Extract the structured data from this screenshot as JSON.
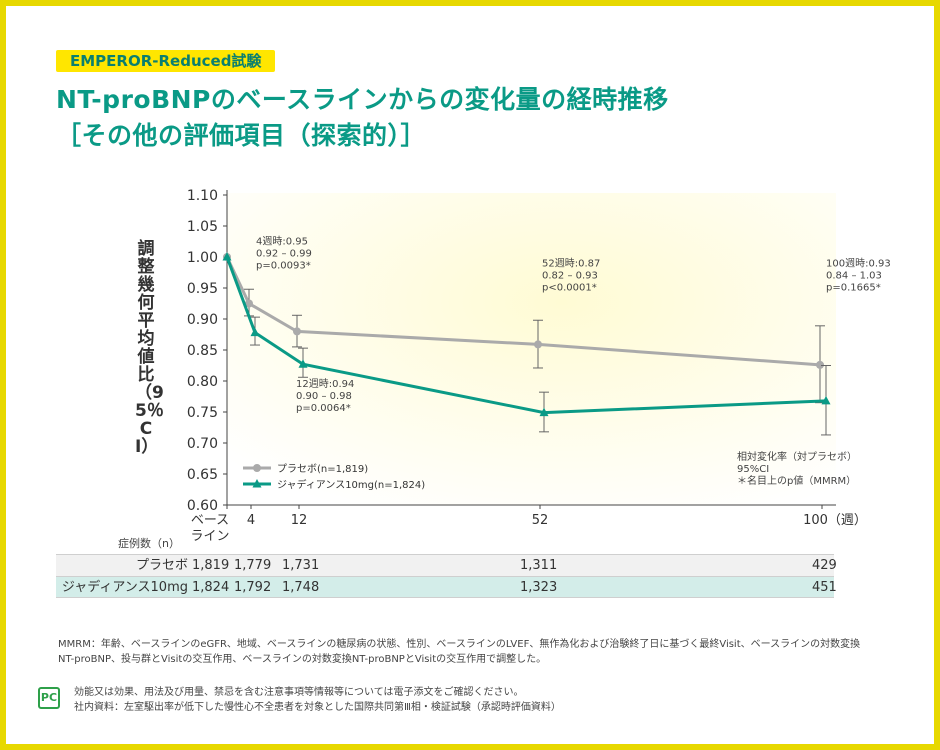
{
  "badge": "EMPEROR-Reduced試験",
  "title_line1": "NT-proBNPのベースラインからの変化量の経時推移",
  "title_line2": "［その他の評価項目（探索的）］",
  "colors": {
    "placebo": "#aaaaaa",
    "drug": "#0a9a86",
    "title": "#0a9a86",
    "badge_bg": "#ffe600",
    "frame": "#e7d800",
    "row2_bg": "#d3ede9"
  },
  "chart_data": {
    "type": "line",
    "ylabel": "調整幾何平均値比（95％CI）",
    "ylim": [
      0.6,
      1.1
    ],
    "yticks": [
      "0.60",
      "0.65",
      "0.70",
      "0.75",
      "0.80",
      "0.85",
      "0.90",
      "0.95",
      "1.00",
      "1.05",
      "1.10"
    ],
    "x": [
      0,
      4,
      12,
      52,
      100
    ],
    "xticks": [
      "ベース\nライン",
      "4",
      "12",
      "52",
      "100（週）"
    ],
    "series": [
      {
        "name": "プラセボ(n=1,819)",
        "color": "#aaaaaa",
        "marker": "circle",
        "values": [
          1.0,
          0.925,
          0.88,
          0.859,
          0.826
        ],
        "ci_low": [
          null,
          0.905,
          0.855,
          0.821,
          0.765
        ],
        "ci_high": [
          null,
          0.948,
          0.906,
          0.898,
          0.889
        ]
      },
      {
        "name": "ジャディアンス10mg(n=1,824)",
        "color": "#0a9a86",
        "marker": "triangle",
        "values": [
          1.0,
          0.878,
          0.827,
          0.749,
          0.768
        ],
        "ci_low": [
          null,
          0.858,
          0.806,
          0.718,
          0.713
        ],
        "ci_high": [
          null,
          0.903,
          0.853,
          0.782,
          0.825
        ]
      }
    ],
    "annotations": [
      {
        "x": 4,
        "y": 1.02,
        "lines": [
          "4週時:0.95",
          "0.92 – 0.99",
          "p=0.0093*"
        ]
      },
      {
        "x": 12,
        "y": 0.79,
        "lines": [
          "12週時:0.94",
          "0.90 – 0.98",
          "p=0.0064*"
        ]
      },
      {
        "x": 52,
        "y": 0.985,
        "lines": [
          "52週時:0.87",
          "0.82 – 0.93",
          "p<0.0001*"
        ]
      },
      {
        "x": 100,
        "y": 0.985,
        "lines": [
          "100週時:0.93",
          "0.84 – 1.03",
          "p=0.1665*"
        ]
      }
    ],
    "note_lines": [
      "相対変化率（対プラセボ）",
      "95%CI",
      "＊名目上のp値（MMRM）"
    ]
  },
  "table": {
    "header": "症例数（n）",
    "rows": [
      {
        "name": "プラセボ",
        "values": [
          "1,819",
          "1,779",
          "1,731",
          "1,311",
          "429"
        ]
      },
      {
        "name": "ジャディアンス10mg",
        "values": [
          "1,824",
          "1,792",
          "1,748",
          "1,323",
          "451"
        ]
      }
    ]
  },
  "footnote_line1": "MMRM：年齢、ベースラインのeGFR、地域、ベースラインの糖尿病の状態、性別、ベースラインのLVEF、無作為化および治験終了日に基づく最終Visit、ベースラインの対数変換",
  "footnote_line2": "NT-proBNP、投与群とVisitの交互作用、ベースラインの対数変換NT-proBNPとVisitの交互作用で調整した。",
  "pc_mark": "PC",
  "bottom_line1": "効能又は効果、用法及び用量、禁忌を含む注意事項等情報等については電子添文をご確認ください。",
  "bottom_line2": "社内資料：左室駆出率が低下した慢性心不全患者を対象とした国際共同第Ⅲ相・検証試験（承認時評価資料）"
}
